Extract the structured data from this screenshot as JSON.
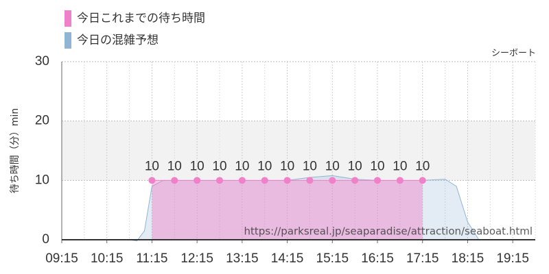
{
  "chart_data": {
    "type": "area",
    "legend": "top-left",
    "annotation": "シーボート",
    "watermark": "https://parksreal.jp/seaparadise/attraction/seaboat.html",
    "ylabel": "待ち時間（分）min",
    "xlim": [
      "09:15",
      "19:45"
    ],
    "xticks": [
      "09:15",
      "10:15",
      "11:15",
      "12:15",
      "13:15",
      "14:15",
      "15:15",
      "16:15",
      "17:15",
      "18:15",
      "19:15"
    ],
    "ylim": [
      0,
      30
    ],
    "yticks": [
      0,
      10,
      20,
      30
    ],
    "highlight_band": [
      10,
      20
    ],
    "grid": true,
    "series": [
      {
        "name": "今日これまでの待ち時間",
        "color": "#f080c8",
        "x": [
          "11:15",
          "11:45",
          "12:15",
          "12:45",
          "13:15",
          "13:45",
          "14:15",
          "14:45",
          "15:15",
          "15:45",
          "16:15",
          "16:45",
          "17:15"
        ],
        "values": [
          10,
          10,
          10,
          10,
          10,
          10,
          10,
          10,
          10,
          10,
          10,
          10,
          10
        ]
      },
      {
        "name": "今日の混雑予想",
        "color": "#90b4d4",
        "x": [
          "09:15",
          "09:45",
          "10:15",
          "10:45",
          "10:55",
          "11:05",
          "11:15",
          "11:30",
          "12:15",
          "13:15",
          "14:15",
          "14:45",
          "15:15",
          "15:45",
          "16:15",
          "17:15",
          "17:45",
          "18:00",
          "18:15",
          "18:30",
          "19:15",
          "19:45"
        ],
        "values": [
          0,
          0,
          0,
          0,
          -0.2,
          1.5,
          9,
          10,
          10,
          10,
          10,
          10.5,
          10.8,
          10.2,
          10,
          10,
          10.2,
          9,
          3,
          0,
          0,
          0
        ]
      }
    ]
  }
}
